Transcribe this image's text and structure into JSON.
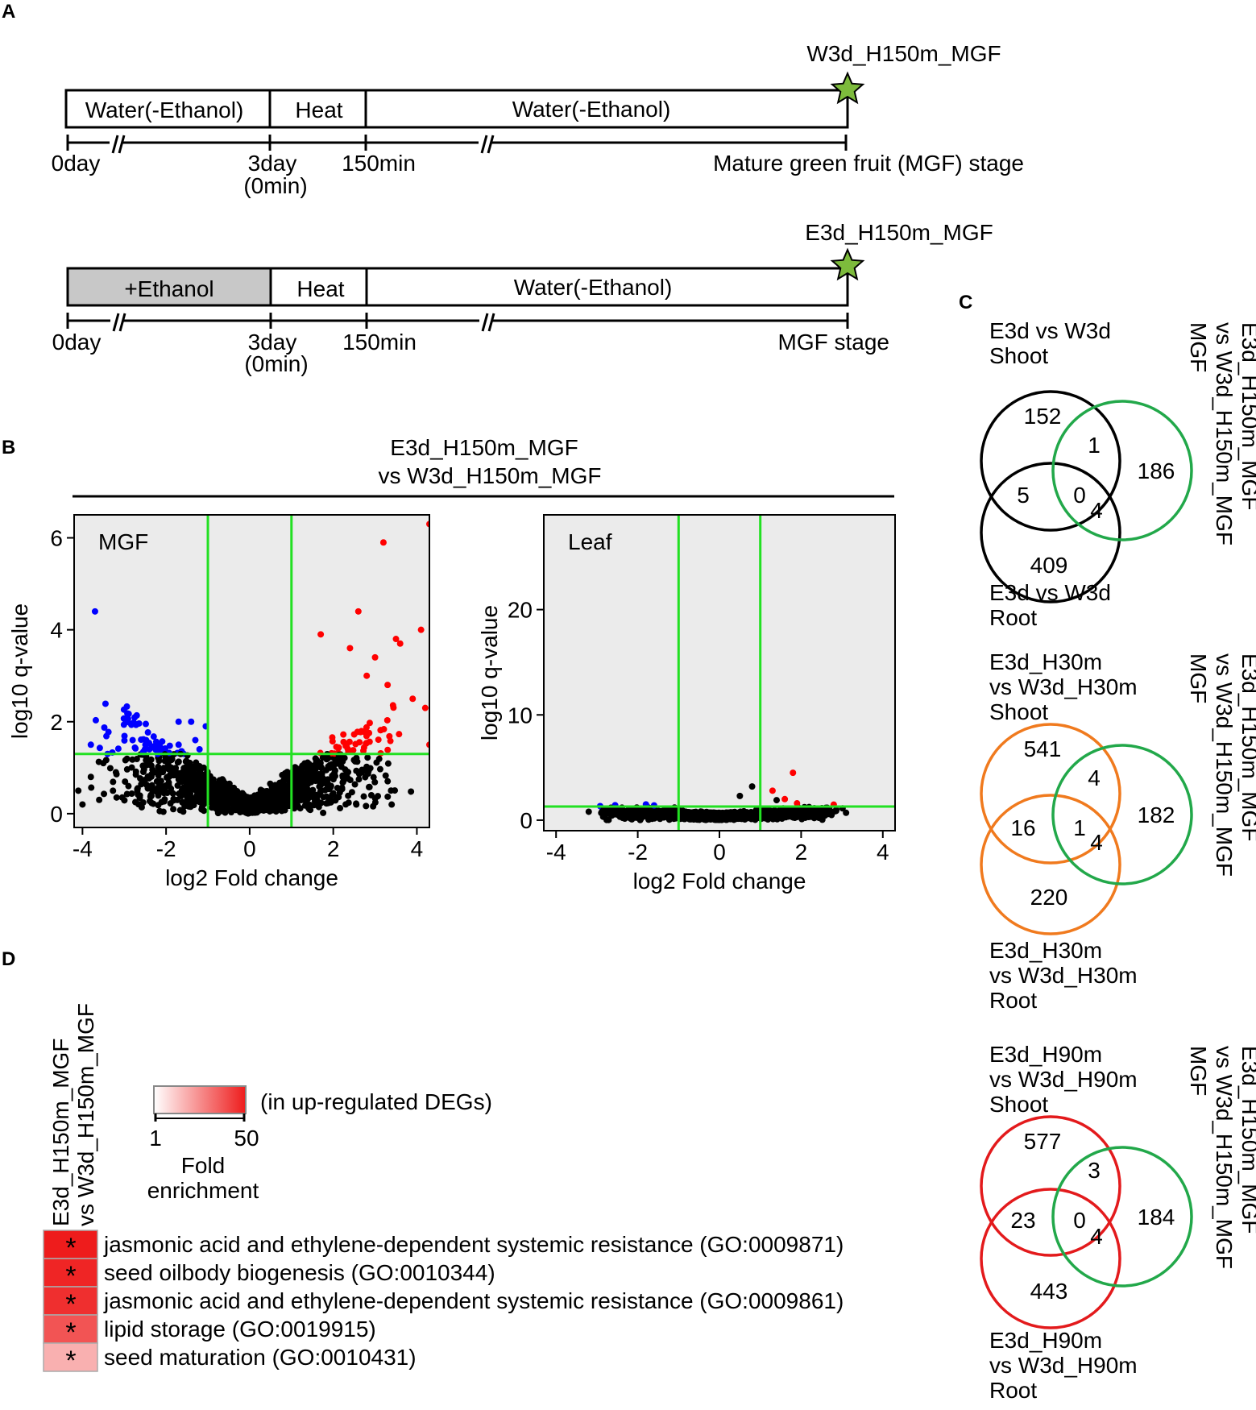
{
  "panels": {
    "A": "A",
    "B": "B",
    "C": "C",
    "D": "D"
  },
  "panel_a": {
    "timelines": [
      {
        "end_label": "W3d_H150m_MGF",
        "segments": [
          "Water(-Ethanol)",
          "Heat",
          "Water(-Ethanol)"
        ],
        "first_segment_color": "#ffffff",
        "ticks": [
          "0day",
          "3day",
          "(0min)",
          "150min",
          "Mature green fruit (MGF) stage"
        ]
      },
      {
        "end_label": "E3d_H150m_MGF",
        "segments": [
          "+Ethanol",
          "Heat",
          "Water(-Ethanol)"
        ],
        "first_segment_color": "#c8c8c8",
        "ticks": [
          "0day",
          "3day",
          "(0min)",
          "150min",
          "MGF stage"
        ]
      }
    ],
    "star_color": "#7dbb3c"
  },
  "panel_b": {
    "title_line1": "E3d_H150m_MGF",
    "title_line2": "vs W3d_H150m_MGF"
  },
  "chart_data": [
    {
      "type": "scatter",
      "title": "MGF",
      "xlabel": "log2 Fold change",
      "ylabel": "log10 q-value",
      "xlim": [
        -4.2,
        4.3
      ],
      "ylim": [
        -0.3,
        6.5
      ],
      "xticks": [
        -4,
        -2,
        0,
        2,
        4
      ],
      "yticks": [
        0,
        2,
        4,
        6
      ],
      "xtick_labels": [
        "-4",
        "-2",
        "0",
        "2",
        "4"
      ],
      "ytick_labels": [
        "0",
        "2",
        "4",
        "6"
      ],
      "threshold_lines": {
        "x": [
          -1,
          1
        ],
        "y": 1.3
      },
      "colors": {
        "up": "#ff0000",
        "down": "#0000ff",
        "ns": "#000000",
        "threshold": "#22e022",
        "bg": "#ebebeb"
      },
      "down_points": [
        [
          -3.7,
          4.4
        ],
        [
          -3.8,
          1.5
        ],
        [
          -3.4,
          1.3
        ],
        [
          -2.8,
          1.6
        ],
        [
          -2.4,
          1.4
        ],
        [
          -2.2,
          1.3
        ],
        [
          -1.7,
          2.0
        ],
        [
          -1.4,
          2.0
        ],
        [
          -1.3,
          1.6
        ],
        [
          -1.2,
          1.4
        ],
        [
          -1.05,
          1.9
        ],
        [
          -1.7,
          1.5
        ]
      ],
      "up_points": [
        [
          4.3,
          6.3
        ],
        [
          3.2,
          5.9
        ],
        [
          2.6,
          4.4
        ],
        [
          4.1,
          4.0
        ],
        [
          3.5,
          3.8
        ],
        [
          3.6,
          3.7
        ],
        [
          3.0,
          3.4
        ],
        [
          2.4,
          3.6
        ],
        [
          1.7,
          3.9
        ],
        [
          2.8,
          3.0
        ],
        [
          3.3,
          2.8
        ],
        [
          3.9,
          2.5
        ],
        [
          4.2,
          2.3
        ],
        [
          4.3,
          1.5
        ]
      ],
      "ns_points": [
        [
          -4.1,
          0.5
        ],
        [
          -3.8,
          0.8
        ],
        [
          -3.5,
          1.1
        ],
        [
          -3.2,
          0.9
        ],
        [
          -2.9,
          0.6
        ],
        [
          -3.6,
          0.3
        ],
        [
          -4.0,
          0.2
        ]
      ]
    },
    {
      "type": "scatter",
      "title": "Leaf",
      "xlabel": "log2 Fold change",
      "ylabel": "log10 q-value",
      "xlim": [
        -4.3,
        4.3
      ],
      "ylim": [
        -1,
        29
      ],
      "xticks": [
        -4,
        -2,
        0,
        2,
        4
      ],
      "yticks": [
        0,
        10,
        20
      ],
      "xtick_labels": [
        "-4",
        "-2",
        "0",
        "2",
        "4"
      ],
      "ytick_labels": [
        "0",
        "10",
        "20"
      ],
      "threshold_lines": {
        "x": [
          -1,
          1
        ],
        "y": 1.3
      },
      "colors": {
        "up": "#ff0000",
        "down": "#0000ff",
        "ns": "#000000",
        "threshold": "#22e022",
        "bg": "#ebebeb"
      },
      "down_points": [
        [
          -1.8,
          1.5
        ],
        [
          -1.6,
          1.4
        ]
      ],
      "up_points": [
        [
          1.8,
          4.5
        ],
        [
          1.3,
          2.8
        ],
        [
          1.6,
          2.0
        ],
        [
          1.9,
          1.6
        ]
      ],
      "ns_points": [
        [
          -3.2,
          0.8
        ],
        [
          3.1,
          0.7
        ],
        [
          0.8,
          3.2
        ],
        [
          0.5,
          2.3
        ],
        [
          1.4,
          1.9
        ],
        [
          -1.1,
          1.2
        ]
      ]
    }
  ],
  "panel_c": {
    "venns": [
      {
        "top_label": [
          "E3d vs W3d",
          "Shoot"
        ],
        "bottom_label": [
          "E3d vs W3d",
          "Root"
        ],
        "side_label": [
          "E3d_H150m_MGF",
          "vs W3d_H150m_MGF",
          "MGF"
        ],
        "color": "#000000",
        "counts": [
          "152",
          "1",
          "186",
          "5",
          "0",
          "4",
          "409"
        ]
      },
      {
        "top_label": [
          "E3d_H30m",
          "vs W3d_H30m",
          "Shoot"
        ],
        "bottom_label": [
          "E3d_H30m",
          "vs W3d_H30m",
          "Root"
        ],
        "side_label": [
          "E3d_H150m_MGF",
          "vs W3d_H150m_MGF",
          "MGF"
        ],
        "color": "#f07a1e",
        "counts": [
          "541",
          "4",
          "182",
          "16",
          "1",
          "4",
          "220"
        ]
      },
      {
        "top_label": [
          "E3d_H90m",
          "vs W3d_H90m",
          "Shoot"
        ],
        "bottom_label": [
          "E3d_H90m",
          "vs W3d_H90m",
          "Root"
        ],
        "side_label": [
          "E3d_H150m_MGF",
          "vs W3d_H150m_MGF",
          "MGF"
        ],
        "color": "#e31a1c",
        "counts": [
          "577",
          "3",
          "184",
          "23",
          "0",
          "4",
          "443"
        ]
      }
    ],
    "green": "#22a84a"
  },
  "panel_d": {
    "column_label": [
      "E3d_H150m_MGF",
      "vs W3d_H150m_MGF"
    ],
    "legend": {
      "note": "(in up-regulated DEGs)",
      "min": "1",
      "max": "50",
      "title_line1": "Fold",
      "title_line2": "enrichment"
    },
    "rows": [
      {
        "term": "jasmonic acid and ethylene-dependent systemic resistance (GO:0009871)",
        "mark": "*",
        "fold": 50
      },
      {
        "term": "seed oilbody biogenesis (GO:0010344)",
        "mark": "*",
        "fold": 48
      },
      {
        "term": "jasmonic acid and ethylene-dependent systemic resistance (GO:0009861)",
        "mark": "*",
        "fold": 46
      },
      {
        "term": "lipid storage (GO:0019915)",
        "mark": "*",
        "fold": 38
      },
      {
        "term": "seed maturation (GO:0010431)",
        "mark": "*",
        "fold": 18
      }
    ]
  }
}
